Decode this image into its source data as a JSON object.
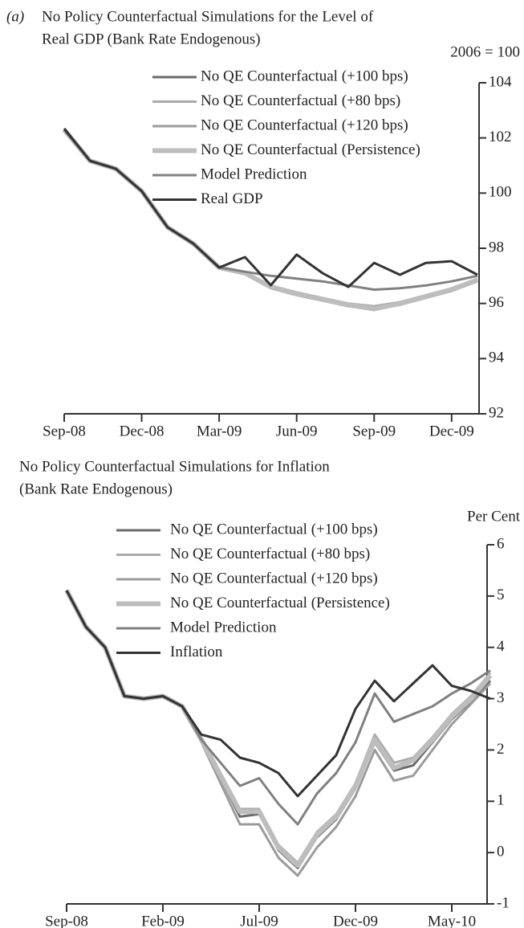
{
  "chart_data": [
    {
      "type": "line",
      "panel": "(a)",
      "title": [
        "No Policy Counterfactual Simulations for the Level of",
        "Real GDP (Bank Rate Endogenous)"
      ],
      "y_label": "2006 = 100",
      "categories": [
        "Sep-08",
        null,
        null,
        "Dec-08",
        null,
        null,
        "Mar-09",
        null,
        null,
        "Jun-09",
        null,
        null,
        "Sep-09",
        null,
        null,
        "Dec-09",
        null
      ],
      "ylim": [
        92,
        104
      ],
      "yticks": [
        92,
        94,
        96,
        98,
        100,
        102,
        104
      ],
      "series": [
        {
          "name": "No QE Counterfactual (+100 bps)",
          "color": "#6a6a6a",
          "width": 3,
          "values": [
            102.3,
            101.17,
            100.88,
            100.07,
            98.76,
            98.17,
            97.3,
            97.1,
            96.6,
            96.35,
            96.15,
            95.95,
            95.85,
            96.0,
            96.25,
            96.5,
            96.85
          ]
        },
        {
          "name": "No QE Counterfactual (+80 bps)",
          "color": "#ababab",
          "width": 3,
          "values": [
            102.3,
            101.17,
            100.88,
            100.07,
            98.76,
            98.17,
            97.3,
            97.12,
            96.65,
            96.4,
            96.2,
            96.0,
            95.9,
            96.05,
            96.3,
            96.55,
            96.9
          ]
        },
        {
          "name": "No QE Counterfactual (+120 bps)",
          "color": "#9b9b9b",
          "width": 3,
          "values": [
            102.3,
            101.17,
            100.88,
            100.07,
            98.76,
            98.17,
            97.3,
            97.08,
            96.55,
            96.3,
            96.1,
            95.9,
            95.8,
            95.95,
            96.2,
            96.45,
            96.8
          ]
        },
        {
          "name": "No QE Counterfactual (Persistence)",
          "color": "#bdbdbd",
          "width": 6,
          "values": [
            102.3,
            101.17,
            100.88,
            100.07,
            98.76,
            98.17,
            97.3,
            97.1,
            96.6,
            96.35,
            96.15,
            95.95,
            95.8,
            96.0,
            96.25,
            96.5,
            96.85
          ]
        },
        {
          "name": "Model Prediction",
          "color": "#808080",
          "width": 3,
          "values": [
            102.3,
            101.17,
            100.88,
            100.07,
            98.76,
            98.17,
            97.3,
            97.15,
            97.0,
            96.9,
            96.8,
            96.65,
            96.5,
            96.55,
            96.65,
            96.8,
            97.0
          ]
        },
        {
          "name": "Real GDP",
          "color": "#333333",
          "width": 3,
          "values": [
            102.34,
            101.17,
            100.88,
            100.07,
            98.76,
            98.17,
            97.3,
            97.68,
            96.66,
            97.77,
            97.1,
            96.6,
            97.47,
            97.04,
            97.47,
            97.53,
            97.04
          ]
        }
      ]
    },
    {
      "type": "line",
      "title": [
        "No Policy Counterfactual Simulations for Inflation",
        "(Bank Rate Endogenous)"
      ],
      "y_label": "Per Cent",
      "categories": [
        "Sep-08",
        null,
        null,
        null,
        null,
        "Feb-09",
        null,
        null,
        null,
        null,
        "Jul-09",
        null,
        null,
        null,
        null,
        "Dec-09",
        null,
        null,
        null,
        null,
        "May-10",
        null,
        null
      ],
      "ylim": [
        -1,
        6
      ],
      "yticks": [
        -1,
        0,
        1,
        2,
        3,
        4,
        5,
        6
      ],
      "series": [
        {
          "name": "No QE Counterfactual (+100 bps)",
          "color": "#6a6a6a",
          "width": 3,
          "values": [
            5.11,
            4.4,
            4.0,
            3.05,
            3.0,
            3.05,
            2.85,
            2.2,
            1.45,
            0.7,
            0.75,
            0.05,
            -0.3,
            0.3,
            0.65,
            1.25,
            2.15,
            1.6,
            1.7,
            2.15,
            2.6,
            2.95,
            3.35
          ]
        },
        {
          "name": "No QE Counterfactual (+80 bps)",
          "color": "#ababab",
          "width": 3,
          "values": [
            5.11,
            4.4,
            4.0,
            3.05,
            3.0,
            3.05,
            2.85,
            2.25,
            1.55,
            0.85,
            0.85,
            0.15,
            -0.2,
            0.4,
            0.75,
            1.35,
            2.3,
            1.75,
            1.85,
            2.25,
            2.7,
            3.05,
            3.5
          ]
        },
        {
          "name": "No QE Counterfactual (+120 bps)",
          "color": "#9b9b9b",
          "width": 3,
          "values": [
            5.11,
            4.4,
            4.0,
            3.05,
            3.0,
            3.05,
            2.85,
            2.15,
            1.35,
            0.55,
            0.55,
            -0.1,
            -0.45,
            0.1,
            0.5,
            1.1,
            2.0,
            1.4,
            1.5,
            2.0,
            2.5,
            2.9,
            3.3
          ]
        },
        {
          "name": "No QE Counterfactual (Persistence)",
          "color": "#bdbdbd",
          "width": 6,
          "values": [
            5.11,
            4.4,
            4.0,
            3.05,
            3.0,
            3.05,
            2.85,
            2.2,
            1.5,
            0.8,
            0.8,
            0.1,
            -0.25,
            0.35,
            0.7,
            1.3,
            2.2,
            1.65,
            1.8,
            2.2,
            2.65,
            3.0,
            3.45
          ]
        },
        {
          "name": "Model Prediction",
          "color": "#808080",
          "width": 3,
          "values": [
            5.11,
            4.4,
            4.0,
            3.05,
            3.0,
            3.05,
            2.85,
            2.2,
            1.75,
            1.3,
            1.45,
            0.95,
            0.55,
            1.15,
            1.55,
            2.15,
            3.1,
            2.55,
            2.7,
            2.85,
            3.1,
            3.3,
            3.55
          ]
        },
        {
          "name": "Inflation",
          "color": "#333333",
          "width": 3,
          "values": [
            5.11,
            4.4,
            4.0,
            3.05,
            3.0,
            3.05,
            2.85,
            2.3,
            2.2,
            1.85,
            1.75,
            1.55,
            1.1,
            1.5,
            1.9,
            2.8,
            3.35,
            2.95,
            3.3,
            3.65,
            3.25,
            3.15,
            3.0
          ]
        }
      ]
    }
  ]
}
